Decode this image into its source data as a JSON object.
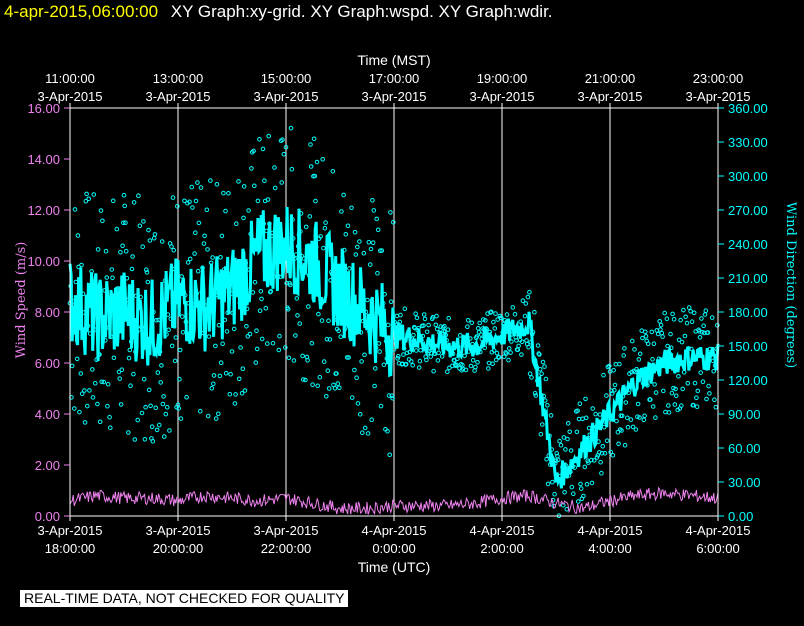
{
  "header": {
    "timestamp": "4-apr-2015,06:00:00",
    "graph_titles": "XY Graph:xy-grid.  XY Graph:wspd.  XY Graph:wdir."
  },
  "disclaimer": "REAL-TIME DATA, NOT CHECKED FOR QUALITY",
  "colors": {
    "background": "#000000",
    "grid": "#ffffff",
    "wind_speed": "#ee82ee",
    "wind_direction": "#00ffff",
    "text": "#ffffff"
  },
  "chart_data": {
    "type": "scatter",
    "grid": true,
    "top_axis": {
      "label": "Time (MST)",
      "ticks": [
        {
          "time": "11:00:00",
          "date": "3-Apr-2015"
        },
        {
          "time": "13:00:00",
          "date": "3-Apr-2015"
        },
        {
          "time": "15:00:00",
          "date": "3-Apr-2015"
        },
        {
          "time": "17:00:00",
          "date": "3-Apr-2015"
        },
        {
          "time": "19:00:00",
          "date": "3-Apr-2015"
        },
        {
          "time": "21:00:00",
          "date": "3-Apr-2015"
        },
        {
          "time": "23:00:00",
          "date": "3-Apr-2015"
        }
      ]
    },
    "bottom_axis": {
      "label": "Time (UTC)",
      "ticks": [
        {
          "date": "3-Apr-2015",
          "time": "18:00:00"
        },
        {
          "date": "3-Apr-2015",
          "time": "20:00:00"
        },
        {
          "date": "3-Apr-2015",
          "time": "22:00:00"
        },
        {
          "date": "4-Apr-2015",
          "time": "0:00:00"
        },
        {
          "date": "4-Apr-2015",
          "time": "2:00:00"
        },
        {
          "date": "4-Apr-2015",
          "time": "4:00:00"
        },
        {
          "date": "4-Apr-2015",
          "time": "6:00:00"
        }
      ],
      "range_hours_utc": [
        "2015-04-03 18:00",
        "2015-04-04 06:00"
      ]
    },
    "left_axis": {
      "label": "Wind Speed (m/s)",
      "ylim": [
        0,
        16
      ],
      "ticks": [
        "0.00",
        "2.00",
        "4.00",
        "6.00",
        "8.00",
        "10.00",
        "12.00",
        "14.00",
        "16.00"
      ]
    },
    "right_axis": {
      "label": "Wind Direction (degrees)",
      "ylim": [
        0,
        360
      ],
      "ticks": [
        "0.00",
        "30.00",
        "60.00",
        "90.00",
        "120.00",
        "150.00",
        "180.00",
        "210.00",
        "240.00",
        "270.00",
        "300.00",
        "330.00",
        "360.00"
      ]
    },
    "series": [
      {
        "name": "wspd",
        "axis": "left",
        "style": "line",
        "x_hours": [
          0,
          0.5,
          1,
          1.5,
          2,
          2.5,
          3,
          3.5,
          4,
          4.5,
          5,
          5.5,
          6,
          6.5,
          7,
          7.5,
          8,
          8.5,
          9,
          9.5,
          10,
          10.5,
          11,
          11.5,
          12
        ],
        "values": [
          0.6,
          0.8,
          0.7,
          0.7,
          0.6,
          0.8,
          0.7,
          0.6,
          0.7,
          0.5,
          0.3,
          0.3,
          0.4,
          0.4,
          0.4,
          0.5,
          0.7,
          0.8,
          0.5,
          0.3,
          0.6,
          0.8,
          0.9,
          0.8,
          0.7
        ]
      },
      {
        "name": "wdir",
        "axis": "right",
        "style": "markers",
        "x_hours": [
          0,
          0.5,
          1,
          1.5,
          2,
          2.5,
          3,
          3.5,
          4,
          4.5,
          5,
          5.5,
          6,
          6.5,
          7,
          7.5,
          8,
          8.5,
          9,
          9.5,
          10,
          10.5,
          11,
          11.5,
          12
        ],
        "values": [
          190,
          175,
          180,
          170,
          190,
          185,
          200,
          230,
          240,
          225,
          200,
          180,
          160,
          155,
          150,
          150,
          160,
          170,
          30,
          60,
          90,
          120,
          135,
          140,
          140
        ]
      }
    ]
  }
}
